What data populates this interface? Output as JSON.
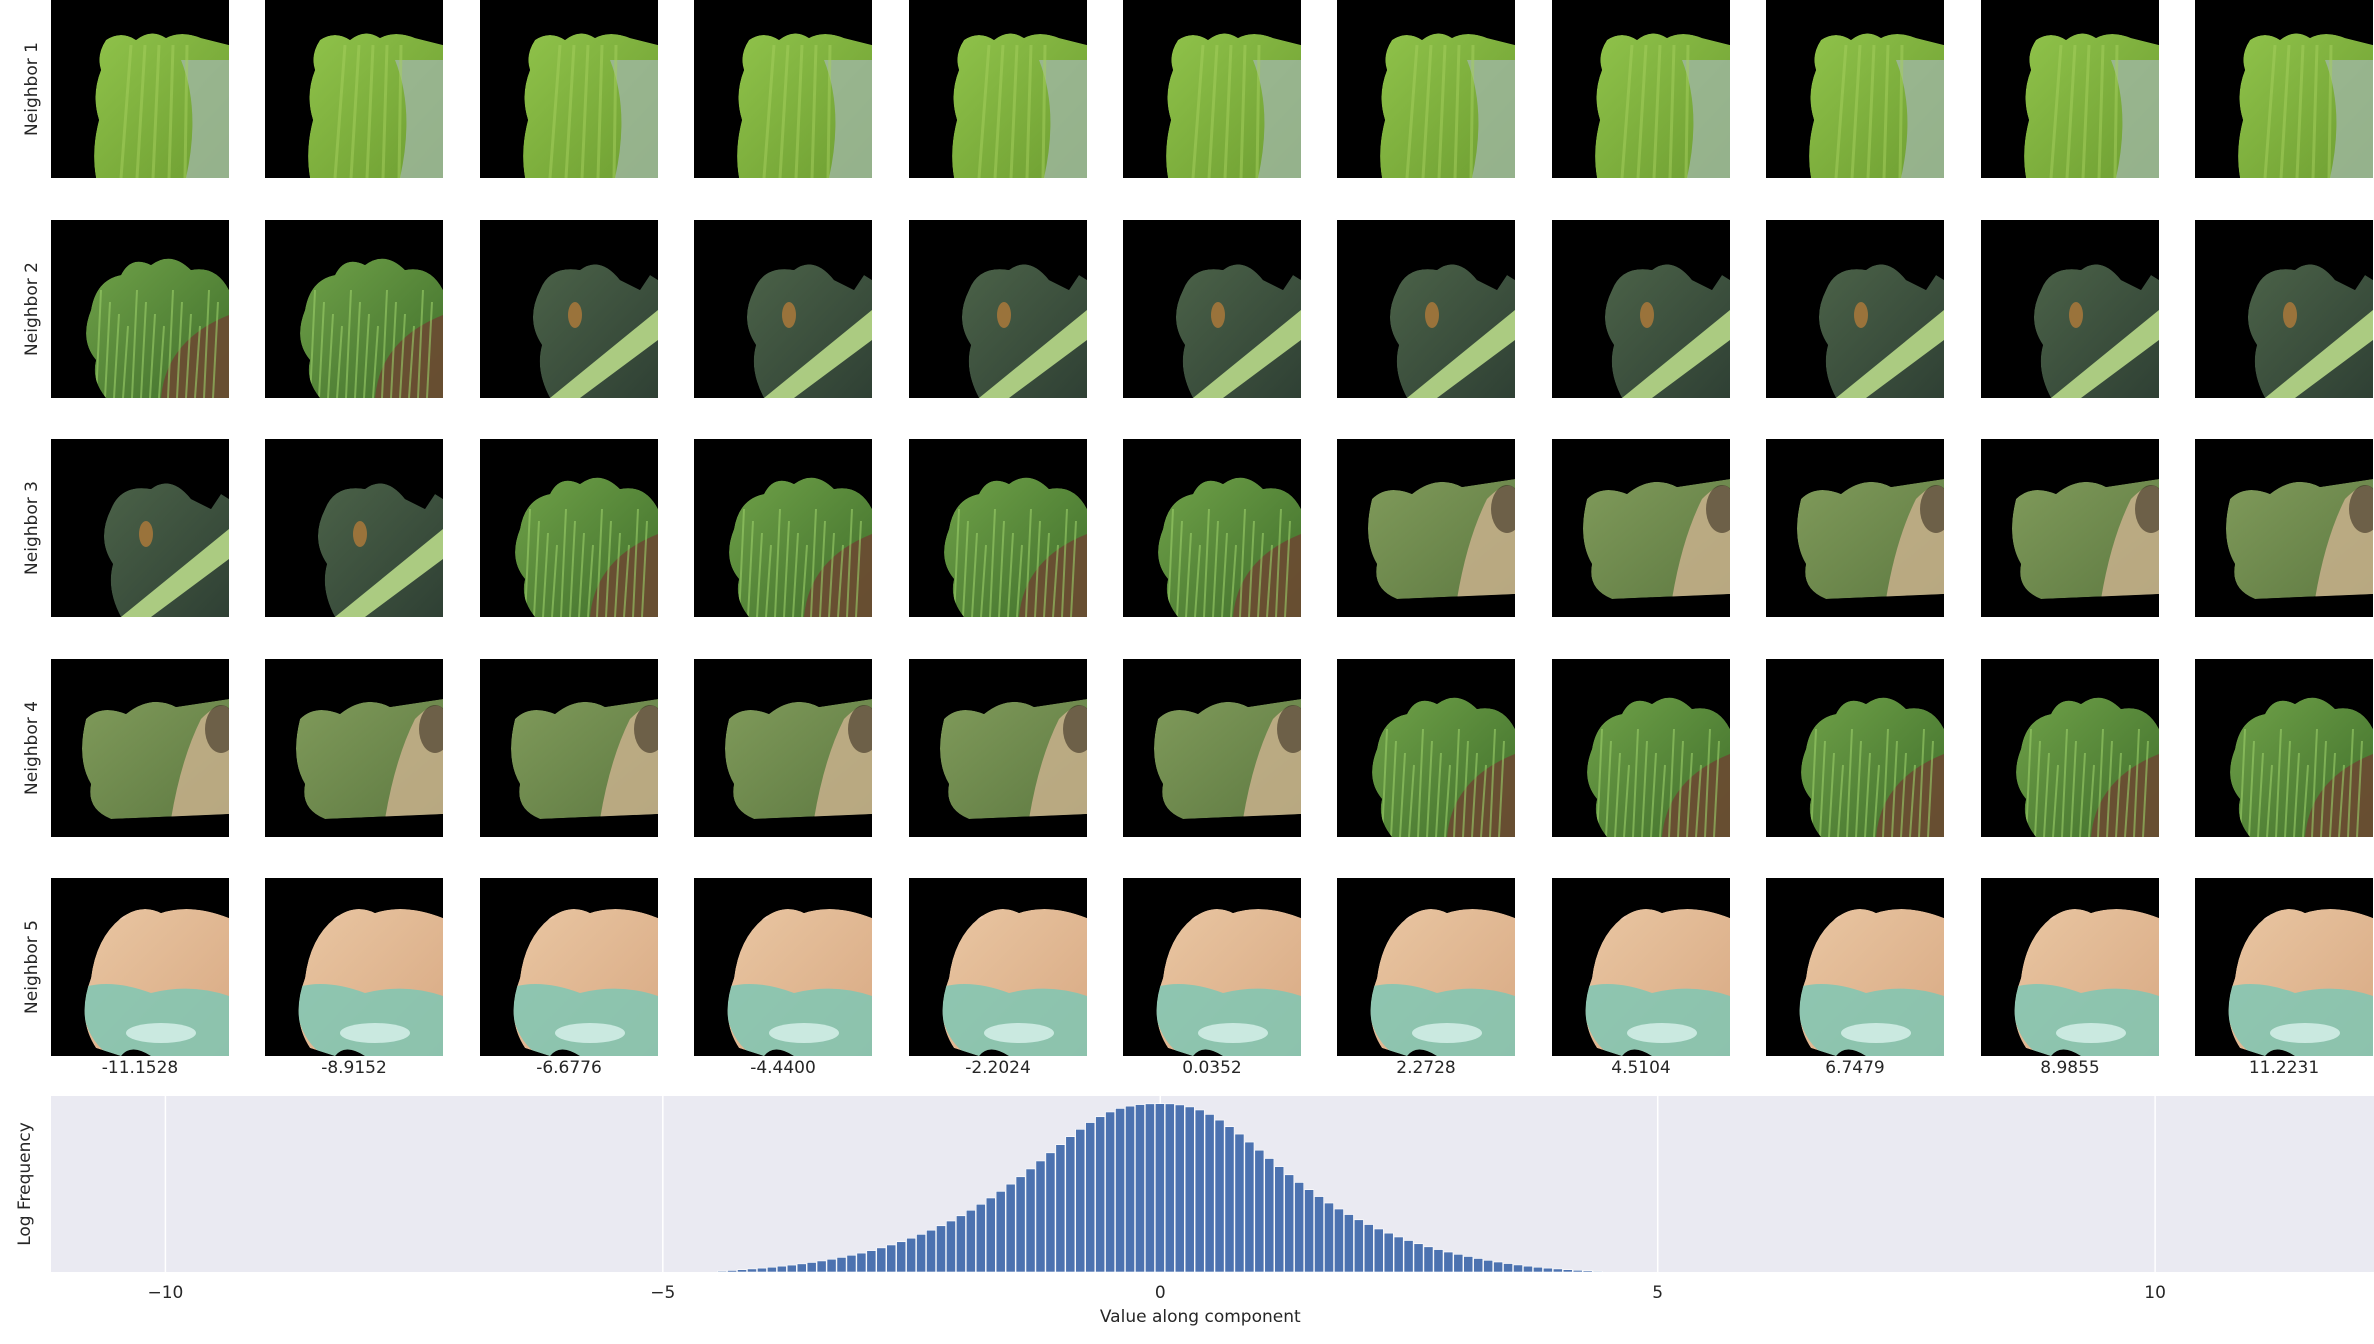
{
  "row_labels": [
    "Neighbor 1",
    "Neighbor 2",
    "Neighbor 3",
    "Neighbor 4",
    "Neighbor 5"
  ],
  "column_values": [
    "-11.1528",
    "-8.9152",
    "-6.6776",
    "-4.4400",
    "-2.2024",
    "0.0352",
    "2.2728",
    "4.5104",
    "6.7479",
    "8.9855",
    "11.2231"
  ],
  "thumbnail_content": [
    [
      "leaf",
      "leaf",
      "leaf",
      "leaf",
      "leaf",
      "leaf",
      "leaf",
      "leaf",
      "leaf",
      "leaf",
      "leaf"
    ],
    [
      "grass",
      "grass",
      "stem",
      "stem",
      "stem",
      "stem",
      "stem",
      "stem",
      "stem",
      "stem",
      "stem"
    ],
    [
      "stem",
      "stem",
      "grass",
      "grass",
      "grass",
      "grass",
      "blur",
      "blur",
      "blur",
      "blur",
      "blur"
    ],
    [
      "blur",
      "blur",
      "blur",
      "blur",
      "blur",
      "blur",
      "grass",
      "grass",
      "grass",
      "grass",
      "grass"
    ],
    [
      "animal",
      "animal",
      "animal",
      "animal",
      "animal",
      "animal",
      "animal",
      "animal",
      "animal",
      "animal",
      "animal"
    ]
  ],
  "colors": {
    "background": "#ffffff",
    "plot_background": "#eaeaf2",
    "bar": "#4c72b0",
    "grid": "#ffffff",
    "thumb_background": "#000000"
  },
  "chart_data": {
    "type": "bar",
    "xlabel": "Value along component",
    "ylabel": "Log Frequency",
    "xlim": [
      -11.15,
      12.2
    ],
    "xticks": [
      -10,
      -5,
      0,
      5,
      10
    ],
    "xtick_labels": [
      "−10",
      "−5",
      "0",
      "5",
      "10"
    ],
    "grid": true,
    "bin_width": 0.1,
    "x": [
      -4.4,
      -4.3,
      -4.2,
      -4.1,
      -4.0,
      -3.9,
      -3.8,
      -3.7,
      -3.6,
      -3.5,
      -3.4,
      -3.3,
      -3.2,
      -3.1,
      -3.0,
      -2.9,
      -2.8,
      -2.7,
      -2.6,
      -2.5,
      -2.4,
      -2.3,
      -2.2,
      -2.1,
      -2.0,
      -1.9,
      -1.8,
      -1.7,
      -1.6,
      -1.5,
      -1.4,
      -1.3,
      -1.2,
      -1.1,
      -1.0,
      -0.9,
      -0.8,
      -0.7,
      -0.6,
      -0.5,
      -0.4,
      -0.3,
      -0.2,
      -0.1,
      0.0,
      0.1,
      0.2,
      0.3,
      0.4,
      0.5,
      0.6,
      0.7,
      0.8,
      0.9,
      1.0,
      1.1,
      1.2,
      1.3,
      1.4,
      1.5,
      1.6,
      1.7,
      1.8,
      1.9,
      2.0,
      2.1,
      2.2,
      2.3,
      2.4,
      2.5,
      2.6,
      2.7,
      2.8,
      2.9,
      3.0,
      3.1,
      3.2,
      3.3,
      3.4,
      3.5,
      3.6,
      3.7,
      3.8,
      3.9,
      4.0,
      4.1,
      4.2,
      4.3,
      4.4
    ],
    "y": [
      0.6,
      1.0,
      1.5,
      2.0,
      2.5,
      3.1,
      3.8,
      4.5,
      5.3,
      6.2,
      7.2,
      8.3,
      9.5,
      10.9,
      12.3,
      13.9,
      15.7,
      17.6,
      19.7,
      22.0,
      24.5,
      27.2,
      30.1,
      33.2,
      36.6,
      40.2,
      44.1,
      48.2,
      52.5,
      57.2,
      62.0,
      67.1,
      72.3,
      77.6,
      82.9,
      88.1,
      92.9,
      97.3,
      101.1,
      104.2,
      106.5,
      108.0,
      109.0,
      109.5,
      109.6,
      109.5,
      108.8,
      107.5,
      105.5,
      102.6,
      98.9,
      94.6,
      89.8,
      84.6,
      79.3,
      73.9,
      68.6,
      63.3,
      58.3,
      53.6,
      49.1,
      44.9,
      41.0,
      37.4,
      34.0,
      30.9,
      28.0,
      25.3,
      22.8,
      20.5,
      18.4,
      16.4,
      14.6,
      13.0,
      11.5,
      10.1,
      8.8,
      7.6,
      6.5,
      5.5,
      4.6,
      3.8,
      3.1,
      2.5,
      2.0,
      1.5,
      1.1,
      0.8,
      0.5
    ]
  }
}
